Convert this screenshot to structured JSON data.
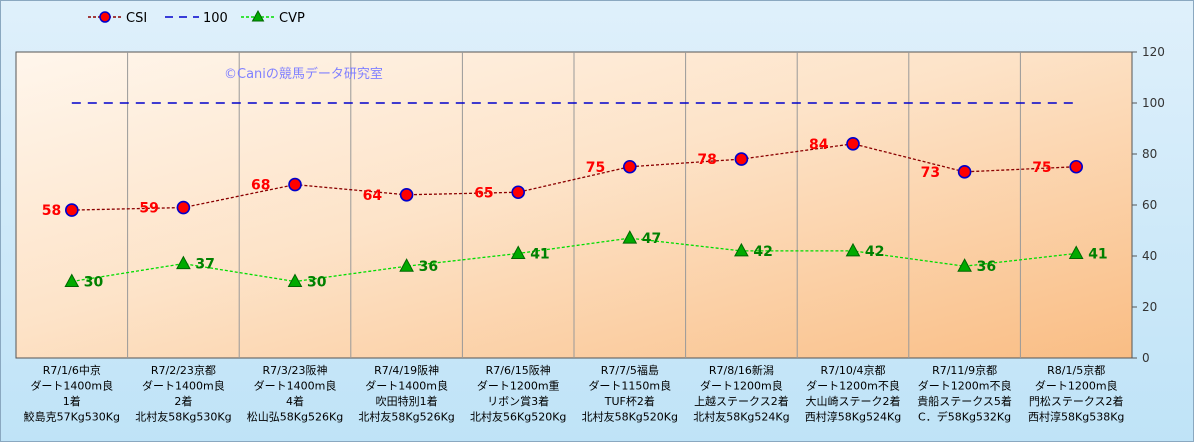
{
  "watermark": "©Caniの競馬データ研究室",
  "chart_data": {
    "type": "line",
    "categories": [
      [
        "R7/1/6中京",
        "ダート1400m良",
        "1着",
        "鮫島克57Kg530Kg"
      ],
      [
        "R7/2/23京都",
        "ダート1400m良",
        "2着",
        "北村友58Kg530Kg"
      ],
      [
        "R7/3/23阪神",
        "ダート1400m良",
        "4着",
        "松山弘58Kg526Kg"
      ],
      [
        "R7/4/19阪神",
        "ダート1400m良",
        "吹田特別1着",
        "北村友58Kg526Kg"
      ],
      [
        "R7/6/15阪神",
        "ダート1200m重",
        "リボン賞3着",
        "北村友56Kg520Kg"
      ],
      [
        "R7/7/5福島",
        "ダート1150m良",
        "TUF杯2着",
        "北村友58Kg520Kg"
      ],
      [
        "R7/8/16新潟",
        "ダート1200m良",
        "上越ステークス2着",
        "北村友58Kg524Kg"
      ],
      [
        "R7/10/4京都",
        "ダート1200m不良",
        "大山崎ステーク2着",
        "西村淳58Kg524Kg"
      ],
      [
        "R7/11/9京都",
        "ダート1200m不良",
        "貴船ステークス5着",
        "C．デ58Kg532Kg"
      ],
      [
        "R8/1/5京都",
        "ダート1200m良",
        "門松ステークス2着",
        "西村淳58Kg538Kg"
      ]
    ],
    "series": [
      {
        "name": "CSI",
        "values": [
          58,
          59,
          68,
          64,
          65,
          75,
          78,
          84,
          73,
          75
        ],
        "color": "#8b0000",
        "marker": "circle",
        "marker_fill": "#ff0000",
        "marker_stroke": "#0000cc",
        "line_style": "dashed"
      },
      {
        "name": "100",
        "values": [
          100,
          100,
          100,
          100,
          100,
          100,
          100,
          100,
          100,
          100
        ],
        "color": "#0000cc",
        "marker": "none",
        "line_style": "dashed"
      },
      {
        "name": "CVP",
        "values": [
          30,
          37,
          30,
          36,
          41,
          47,
          42,
          42,
          36,
          41
        ],
        "color": "#00dd00",
        "marker": "triangle",
        "marker_fill": "#00aa00",
        "line_style": "dashed"
      }
    ],
    "yaxis": {
      "min": 0,
      "max": 120,
      "ticks": [
        "0",
        "20",
        "40",
        "60",
        "80",
        "100",
        "120"
      ],
      "side": "right"
    },
    "grid": "vertical",
    "legend": "top-left"
  }
}
